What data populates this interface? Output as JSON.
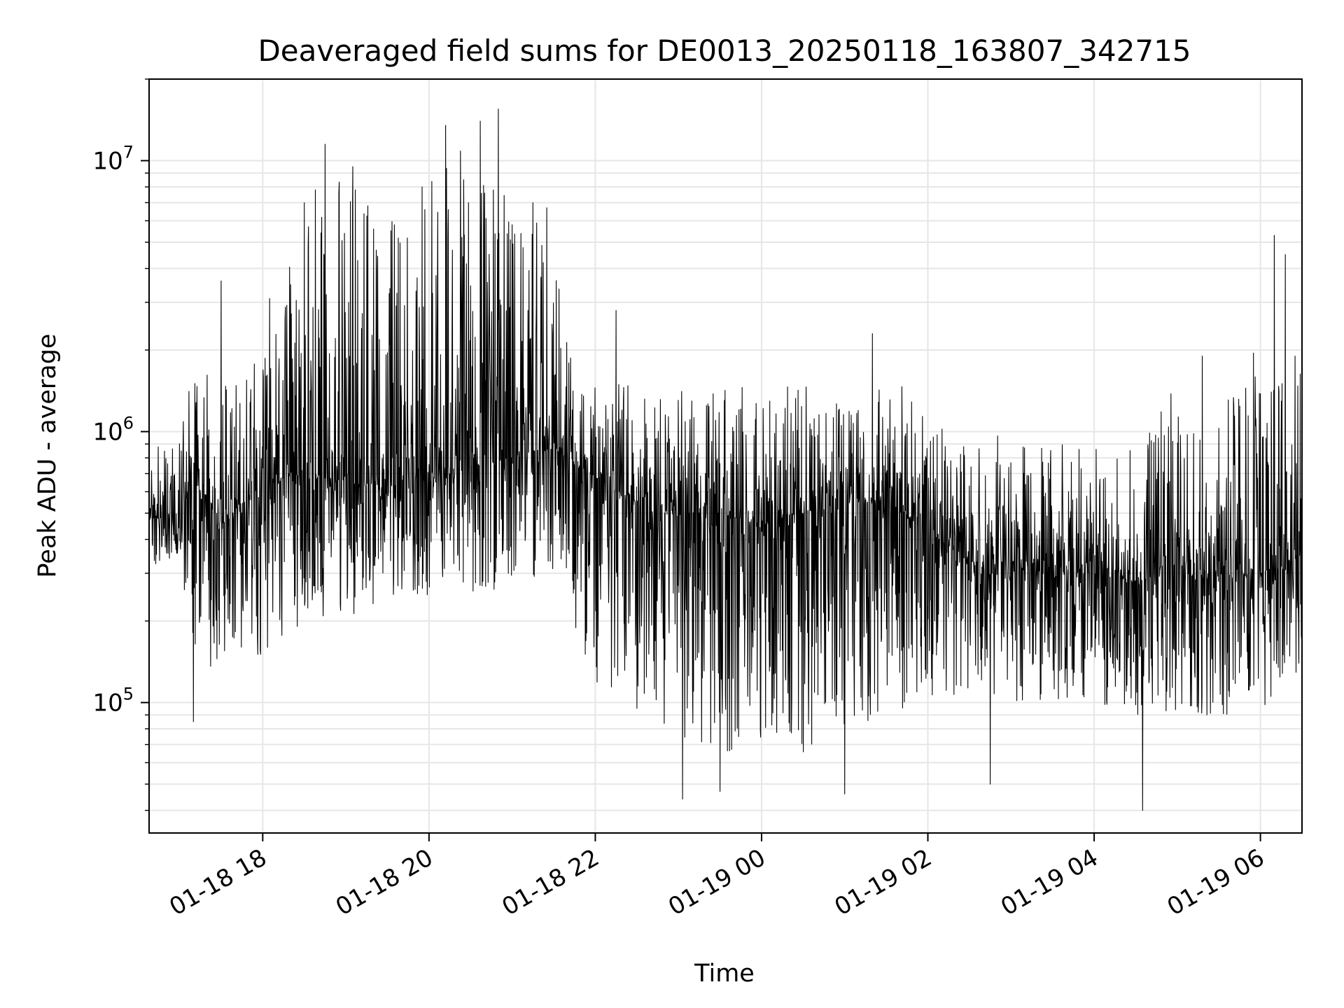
{
  "chart_data": {
    "type": "line",
    "title": "Deaveraged field sums for DE0013_20250118_163807_342715",
    "xlabel": "Time",
    "ylabel": "Peak ADU - average",
    "yscale": "log",
    "ylim": [
      33000,
      20000000
    ],
    "xlim": [
      "2025-01-18 16:38",
      "2025-01-19 06:30"
    ],
    "grid": true,
    "series_color": "#000000",
    "x_ticks": [
      {
        "value": "2025-01-18 18:00",
        "label": "01-18 18"
      },
      {
        "value": "2025-01-18 20:00",
        "label": "01-18 20"
      },
      {
        "value": "2025-01-18 22:00",
        "label": "01-18 22"
      },
      {
        "value": "2025-01-19 00:00",
        "label": "01-19 00"
      },
      {
        "value": "2025-01-19 02:00",
        "label": "01-19 02"
      },
      {
        "value": "2025-01-19 04:00",
        "label": "01-19 04"
      },
      {
        "value": "2025-01-19 06:00",
        "label": "01-19 06"
      }
    ],
    "y_ticks": [
      {
        "value": 100000,
        "base": "10",
        "exp": "5"
      },
      {
        "value": 1000000,
        "base": "10",
        "exp": "6"
      },
      {
        "value": 10000000,
        "base": "10",
        "exp": "7"
      }
    ],
    "series": [
      {
        "values_shown": "dense noisy series; envelope approximated per segment",
        "x": [
          "2025-01-18 16:38",
          "2025-01-18 17:00",
          "2025-01-18 17:10",
          "2025-01-18 17:30",
          "2025-01-18 18:00",
          "2025-01-18 18:30",
          "2025-01-18 19:00",
          "2025-01-18 19:30",
          "2025-01-18 20:00",
          "2025-01-18 20:30",
          "2025-01-18 21:00",
          "2025-01-18 21:30",
          "2025-01-18 21:45",
          "2025-01-18 22:30",
          "2025-01-18 23:00",
          "2025-01-18 23:30",
          "2025-01-19 00:00",
          "2025-01-19 00:30",
          "2025-01-19 01:00",
          "2025-01-19 01:30",
          "2025-01-19 01:55",
          "2025-01-19 02:30",
          "2025-01-19 03:00",
          "2025-01-19 03:30",
          "2025-01-19 04:00",
          "2025-01-19 04:30",
          "2025-01-19 05:00",
          "2025-01-19 05:30",
          "2025-01-19 06:00",
          "2025-01-19 06:30"
        ],
        "median": [
          500000,
          450000,
          700000,
          450000,
          650000,
          700000,
          650000,
          600000,
          700000,
          750000,
          800000,
          900000,
          750000,
          550000,
          500000,
          500000,
          450000,
          500000,
          550000,
          550000,
          450000,
          330000,
          330000,
          320000,
          300000,
          280000,
          300000,
          290000,
          300000,
          350000
        ],
        "low": [
          300000,
          350000,
          150000,
          120000,
          150000,
          200000,
          200000,
          220000,
          250000,
          250000,
          250000,
          300000,
          120000,
          90000,
          70000,
          65000,
          65000,
          65000,
          70000,
          75000,
          100000,
          110000,
          100000,
          100000,
          100000,
          90000,
          90000,
          90000,
          90000,
          130000
        ],
        "high": [
          900000,
          1000000,
          1800000,
          1500000,
          2000000,
          6000000,
          9000000,
          6000000,
          9000000,
          12000000,
          8000000,
          5000000,
          1500000,
          1500000,
          1500000,
          1500000,
          1500000,
          1500000,
          1500000,
          1800000,
          1200000,
          900000,
          1000000,
          900000,
          900000,
          900000,
          1500000,
          1200000,
          2000000,
          2000000
        ],
        "spikes": [
          {
            "x": "2025-01-18 17:10",
            "y": 85000
          },
          {
            "x": "2025-01-18 17:30",
            "y": 3600000
          },
          {
            "x": "2025-01-18 18:05",
            "y": 3100000
          },
          {
            "x": "2025-01-18 18:30",
            "y": 7000000
          },
          {
            "x": "2025-01-18 18:38",
            "y": 7800000
          },
          {
            "x": "2025-01-18 18:45",
            "y": 11500000
          },
          {
            "x": "2025-01-18 19:05",
            "y": 9500000
          },
          {
            "x": "2025-01-18 19:20",
            "y": 5600000
          },
          {
            "x": "2025-01-18 19:35",
            "y": 5800000
          },
          {
            "x": "2025-01-18 19:55",
            "y": 8000000
          },
          {
            "x": "2025-01-18 20:12",
            "y": 13500000
          },
          {
            "x": "2025-01-18 20:25",
            "y": 8500000
          },
          {
            "x": "2025-01-18 20:37",
            "y": 14000000
          },
          {
            "x": "2025-01-18 20:50",
            "y": 15500000
          },
          {
            "x": "2025-01-18 21:00",
            "y": 5800000
          },
          {
            "x": "2025-01-18 21:15",
            "y": 7000000
          },
          {
            "x": "2025-01-18 21:25",
            "y": 6700000
          },
          {
            "x": "2025-01-18 22:15",
            "y": 2800000
          },
          {
            "x": "2025-01-18 23:03",
            "y": 44000
          },
          {
            "x": "2025-01-18 23:30",
            "y": 47000
          },
          {
            "x": "2025-01-19 01:00",
            "y": 46000
          },
          {
            "x": "2025-01-19 01:20",
            "y": 2300000
          },
          {
            "x": "2025-01-19 02:45",
            "y": 50000
          },
          {
            "x": "2025-01-19 04:35",
            "y": 40000
          },
          {
            "x": "2025-01-19 05:18",
            "y": 1900000
          },
          {
            "x": "2025-01-19 05:55",
            "y": 1950000
          },
          {
            "x": "2025-01-19 06:10",
            "y": 5300000
          },
          {
            "x": "2025-01-19 06:18",
            "y": 4500000
          },
          {
            "x": "2025-01-19 06:25",
            "y": 1900000
          }
        ]
      }
    ]
  }
}
